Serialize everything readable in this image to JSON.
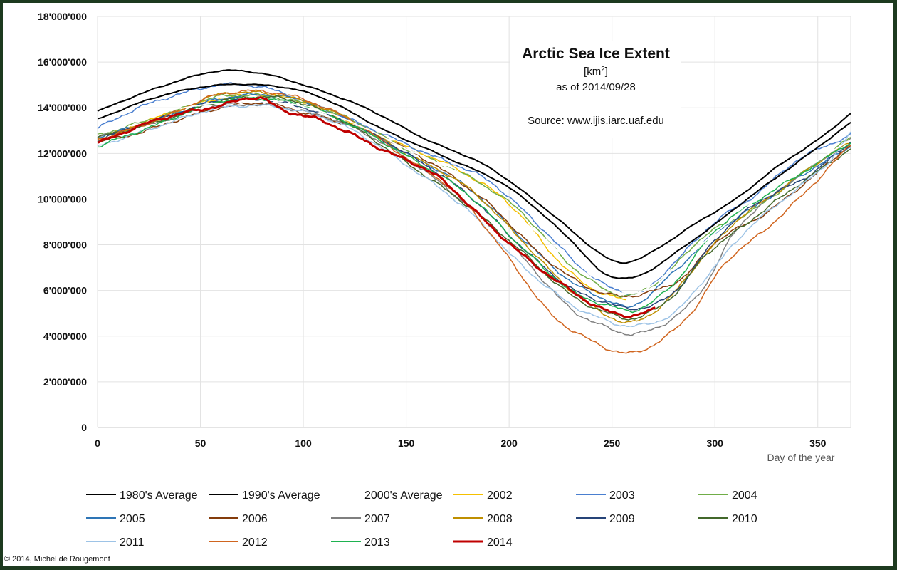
{
  "chart_data": {
    "type": "line",
    "title": "Arctic Sea Ice Extent",
    "unit_label": "[km²]",
    "unit_base": "[km",
    "unit_sup": "2",
    "unit_close": "]",
    "as_of": "as of 2014/09/28",
    "source": "Source: www.ijis.iarc.uaf.edu",
    "xlabel": "Day of the year",
    "ylabel": "",
    "xlim": [
      0,
      366
    ],
    "ylim": [
      0,
      18000000
    ],
    "x_ticks": [
      0,
      50,
      100,
      150,
      200,
      250,
      300,
      350
    ],
    "x_tick_labels": [
      "0",
      "50",
      "100",
      "150",
      "200",
      "250",
      "300",
      "350"
    ],
    "y_ticks": [
      0,
      2000000,
      4000000,
      6000000,
      8000000,
      10000000,
      12000000,
      14000000,
      16000000,
      18000000
    ],
    "y_tick_labels": [
      "0",
      "2'000'000",
      "4'000'000",
      "6'000'000",
      "8'000'000",
      "10'000'000",
      "12'000'000",
      "14'000'000",
      "16'000'000",
      "18'000'000"
    ],
    "grid": true,
    "legend_position": "bottom",
    "value_unit_note": "series points are [day, extent in millions km²]",
    "series": [
      {
        "name": "1980's Average",
        "color": "#000000",
        "width": 2,
        "points": [
          [
            0,
            13.85
          ],
          [
            30,
            14.9
          ],
          [
            58,
            15.6
          ],
          [
            80,
            15.5
          ],
          [
            100,
            15.0
          ],
          [
            130,
            14.0
          ],
          [
            160,
            12.6
          ],
          [
            190,
            11.4
          ],
          [
            220,
            9.4
          ],
          [
            240,
            7.9
          ],
          [
            252,
            7.25
          ],
          [
            262,
            7.35
          ],
          [
            275,
            8.0
          ],
          [
            290,
            8.9
          ],
          [
            310,
            10.0
          ],
          [
            330,
            11.4
          ],
          [
            350,
            12.6
          ],
          [
            366,
            13.75
          ]
        ]
      },
      {
        "name": "1990's Average",
        "color": "#000000",
        "width": 2,
        "points": [
          [
            0,
            13.5
          ],
          [
            30,
            14.5
          ],
          [
            60,
            15.0
          ],
          [
            90,
            14.9
          ],
          [
            110,
            14.4
          ],
          [
            140,
            13.0
          ],
          [
            170,
            11.8
          ],
          [
            200,
            10.5
          ],
          [
            230,
            8.2
          ],
          [
            245,
            6.8
          ],
          [
            255,
            6.55
          ],
          [
            265,
            6.7
          ],
          [
            280,
            7.6
          ],
          [
            300,
            8.9
          ],
          [
            320,
            10.3
          ],
          [
            340,
            11.6
          ],
          [
            366,
            13.35
          ]
        ]
      },
      {
        "name": "2000's Average",
        "color": "#ffffff",
        "width": 2,
        "points": [
          [
            0,
            12.9
          ],
          [
            30,
            13.8
          ],
          [
            60,
            14.2
          ],
          [
            90,
            14.2
          ],
          [
            120,
            13.5
          ],
          [
            150,
            12.2
          ],
          [
            180,
            10.9
          ],
          [
            210,
            8.8
          ],
          [
            235,
            6.9
          ],
          [
            250,
            6.0
          ],
          [
            262,
            5.9
          ],
          [
            275,
            6.6
          ],
          [
            300,
            8.5
          ],
          [
            325,
            10.3
          ],
          [
            345,
            11.4
          ],
          [
            366,
            12.6
          ]
        ]
      },
      {
        "name": "2002",
        "color": "#f5c000",
        "width": 1.5,
        "points": [
          [
            0,
            12.6
          ],
          [
            30,
            13.6
          ],
          [
            60,
            14.4
          ],
          [
            90,
            14.5
          ],
          [
            120,
            13.5
          ],
          [
            150,
            12.3
          ],
          [
            175,
            11.3
          ],
          [
            200,
            9.8
          ],
          [
            225,
            7.2
          ],
          [
            240,
            6.1
          ],
          [
            257,
            5.55
          ]
        ]
      },
      {
        "name": "2003",
        "color": "#4a7fd0",
        "width": 1.5,
        "points": [
          [
            0,
            13.1
          ],
          [
            20,
            14.0
          ],
          [
            40,
            14.6
          ],
          [
            60,
            15.0
          ],
          [
            80,
            14.9
          ],
          [
            100,
            14.3
          ],
          [
            130,
            13.2
          ],
          [
            160,
            12.0
          ],
          [
            190,
            10.8
          ],
          [
            215,
            8.8
          ],
          [
            235,
            7.0
          ],
          [
            250,
            6.1
          ],
          [
            265,
            5.95
          ],
          [
            280,
            7.2
          ],
          [
            300,
            9.0
          ],
          [
            320,
            10.2
          ],
          [
            340,
            11.7
          ],
          [
            366,
            12.8
          ]
        ]
      },
      {
        "name": "2004",
        "color": "#70ad47",
        "width": 1.5,
        "points": [
          [
            0,
            12.8
          ],
          [
            30,
            13.6
          ],
          [
            60,
            14.5
          ],
          [
            90,
            14.4
          ],
          [
            120,
            13.6
          ],
          [
            150,
            12.2
          ],
          [
            180,
            11.0
          ],
          [
            205,
            9.5
          ],
          [
            230,
            7.1
          ],
          [
            250,
            5.9
          ],
          [
            260,
            5.8
          ],
          [
            275,
            6.6
          ],
          [
            295,
            8.4
          ],
          [
            320,
            9.6
          ],
          [
            345,
            11.3
          ],
          [
            366,
            12.7
          ]
        ]
      },
      {
        "name": "2005",
        "color": "#2e75b6",
        "width": 1.5,
        "points": [
          [
            0,
            12.7
          ],
          [
            30,
            13.5
          ],
          [
            60,
            14.4
          ],
          [
            90,
            14.5
          ],
          [
            120,
            13.6
          ],
          [
            150,
            12.0
          ],
          [
            180,
            10.5
          ],
          [
            205,
            8.4
          ],
          [
            230,
            6.4
          ],
          [
            250,
            5.5
          ],
          [
            260,
            5.3
          ],
          [
            280,
            6.8
          ],
          [
            300,
            8.5
          ],
          [
            325,
            10.0
          ],
          [
            345,
            11.2
          ],
          [
            366,
            12.3
          ]
        ]
      },
      {
        "name": "2006",
        "color": "#843c0c",
        "width": 1.5,
        "points": [
          [
            0,
            12.5
          ],
          [
            20,
            12.9
          ],
          [
            40,
            13.5
          ],
          [
            60,
            14.0
          ],
          [
            80,
            14.2
          ],
          [
            100,
            13.8
          ],
          [
            130,
            13.0
          ],
          [
            160,
            11.7
          ],
          [
            190,
            9.8
          ],
          [
            215,
            7.6
          ],
          [
            235,
            6.3
          ],
          [
            250,
            5.8
          ],
          [
            265,
            5.85
          ],
          [
            285,
            6.6
          ],
          [
            300,
            8.1
          ],
          [
            325,
            9.4
          ],
          [
            345,
            10.8
          ],
          [
            366,
            12.4
          ]
        ]
      },
      {
        "name": "2007",
        "color": "#7f7f7f",
        "width": 1.5,
        "points": [
          [
            0,
            12.7
          ],
          [
            30,
            13.4
          ],
          [
            60,
            14.1
          ],
          [
            90,
            14.0
          ],
          [
            120,
            13.3
          ],
          [
            150,
            11.8
          ],
          [
            180,
            9.7
          ],
          [
            205,
            7.6
          ],
          [
            230,
            5.2
          ],
          [
            250,
            4.3
          ],
          [
            262,
            4.1
          ],
          [
            280,
            4.8
          ],
          [
            295,
            6.2
          ],
          [
            310,
            8.6
          ],
          [
            330,
            10.3
          ],
          [
            350,
            11.6
          ],
          [
            366,
            12.6
          ]
        ]
      },
      {
        "name": "2008",
        "color": "#bf8f00",
        "width": 1.5,
        "points": [
          [
            0,
            12.6
          ],
          [
            30,
            13.5
          ],
          [
            60,
            14.6
          ],
          [
            90,
            14.5
          ],
          [
            120,
            13.6
          ],
          [
            150,
            12.0
          ],
          [
            180,
            10.5
          ],
          [
            205,
            8.3
          ],
          [
            230,
            6.0
          ],
          [
            250,
            4.8
          ],
          [
            260,
            4.6
          ],
          [
            275,
            5.4
          ],
          [
            290,
            7.0
          ],
          [
            310,
            9.0
          ],
          [
            330,
            10.3
          ],
          [
            350,
            11.6
          ],
          [
            366,
            12.5
          ]
        ]
      },
      {
        "name": "2009",
        "color": "#264478",
        "width": 1.5,
        "points": [
          [
            0,
            12.6
          ],
          [
            30,
            13.5
          ],
          [
            60,
            14.3
          ],
          [
            90,
            14.2
          ],
          [
            120,
            13.4
          ],
          [
            150,
            12.0
          ],
          [
            180,
            10.2
          ],
          [
            205,
            8.0
          ],
          [
            230,
            6.1
          ],
          [
            250,
            5.4
          ],
          [
            262,
            5.2
          ],
          [
            280,
            5.9
          ],
          [
            300,
            8.2
          ],
          [
            320,
            9.8
          ],
          [
            345,
            11.0
          ],
          [
            366,
            12.5
          ]
        ]
      },
      {
        "name": "2010",
        "color": "#43682b",
        "width": 1.5,
        "points": [
          [
            0,
            12.7
          ],
          [
            30,
            13.4
          ],
          [
            60,
            14.3
          ],
          [
            90,
            14.4
          ],
          [
            120,
            13.4
          ],
          [
            150,
            11.6
          ],
          [
            180,
            9.7
          ],
          [
            205,
            7.8
          ],
          [
            230,
            5.8
          ],
          [
            250,
            4.95
          ],
          [
            262,
            4.8
          ],
          [
            280,
            5.8
          ],
          [
            295,
            7.5
          ],
          [
            315,
            8.9
          ],
          [
            340,
            10.6
          ],
          [
            366,
            12.2
          ]
        ]
      },
      {
        "name": "2011",
        "color": "#9dc3e6",
        "width": 1.5,
        "points": [
          [
            0,
            12.3
          ],
          [
            30,
            13.2
          ],
          [
            60,
            14.0
          ],
          [
            90,
            14.0
          ],
          [
            120,
            13.2
          ],
          [
            150,
            11.5
          ],
          [
            180,
            9.5
          ],
          [
            205,
            7.2
          ],
          [
            230,
            5.4
          ],
          [
            250,
            4.6
          ],
          [
            262,
            4.45
          ],
          [
            280,
            5.0
          ],
          [
            295,
            6.5
          ],
          [
            315,
            8.6
          ],
          [
            335,
            10.1
          ],
          [
            355,
            11.6
          ],
          [
            366,
            12.9
          ]
        ]
      },
      {
        "name": "2012",
        "color": "#d0651f",
        "width": 1.5,
        "points": [
          [
            0,
            12.6
          ],
          [
            30,
            13.5
          ],
          [
            60,
            14.6
          ],
          [
            90,
            14.6
          ],
          [
            120,
            13.6
          ],
          [
            150,
            11.8
          ],
          [
            175,
            10.2
          ],
          [
            200,
            7.4
          ],
          [
            220,
            5.0
          ],
          [
            240,
            3.8
          ],
          [
            258,
            3.25
          ],
          [
            275,
            3.9
          ],
          [
            290,
            5.2
          ],
          [
            305,
            7.2
          ],
          [
            325,
            8.7
          ],
          [
            345,
            10.4
          ],
          [
            366,
            12.4
          ]
        ]
      },
      {
        "name": "2013",
        "color": "#1eb250",
        "width": 1.5,
        "points": [
          [
            0,
            12.3
          ],
          [
            30,
            13.3
          ],
          [
            60,
            14.3
          ],
          [
            90,
            14.3
          ],
          [
            120,
            13.4
          ],
          [
            150,
            11.9
          ],
          [
            180,
            10.2
          ],
          [
            205,
            8.0
          ],
          [
            230,
            6.0
          ],
          [
            250,
            5.3
          ],
          [
            262,
            5.15
          ],
          [
            280,
            6.3
          ],
          [
            300,
            8.6
          ],
          [
            320,
            9.9
          ],
          [
            345,
            11.3
          ],
          [
            366,
            12.5
          ]
        ]
      },
      {
        "name": "2014",
        "color": "#c00000",
        "width": 3,
        "points": [
          [
            0,
            12.45
          ],
          [
            30,
            13.5
          ],
          [
            60,
            14.1
          ],
          [
            78,
            14.45
          ],
          [
            90,
            13.9
          ],
          [
            110,
            13.4
          ],
          [
            140,
            12.1
          ],
          [
            165,
            11.0
          ],
          [
            190,
            8.9
          ],
          [
            210,
            7.3
          ],
          [
            230,
            6.0
          ],
          [
            245,
            5.2
          ],
          [
            258,
            4.9
          ],
          [
            265,
            5.0
          ],
          [
            271,
            5.2
          ]
        ]
      }
    ]
  },
  "legend": {
    "items": [
      "1980's Average",
      "1990's Average",
      "2000's Average",
      "2002",
      "2003",
      "2004",
      "2005",
      "2006",
      "2007",
      "2008",
      "2009",
      "2010",
      "2011",
      "2012",
      "2013",
      "2014"
    ]
  },
  "footer": {
    "copyright": "© 2014, Michel de Rougemont"
  }
}
